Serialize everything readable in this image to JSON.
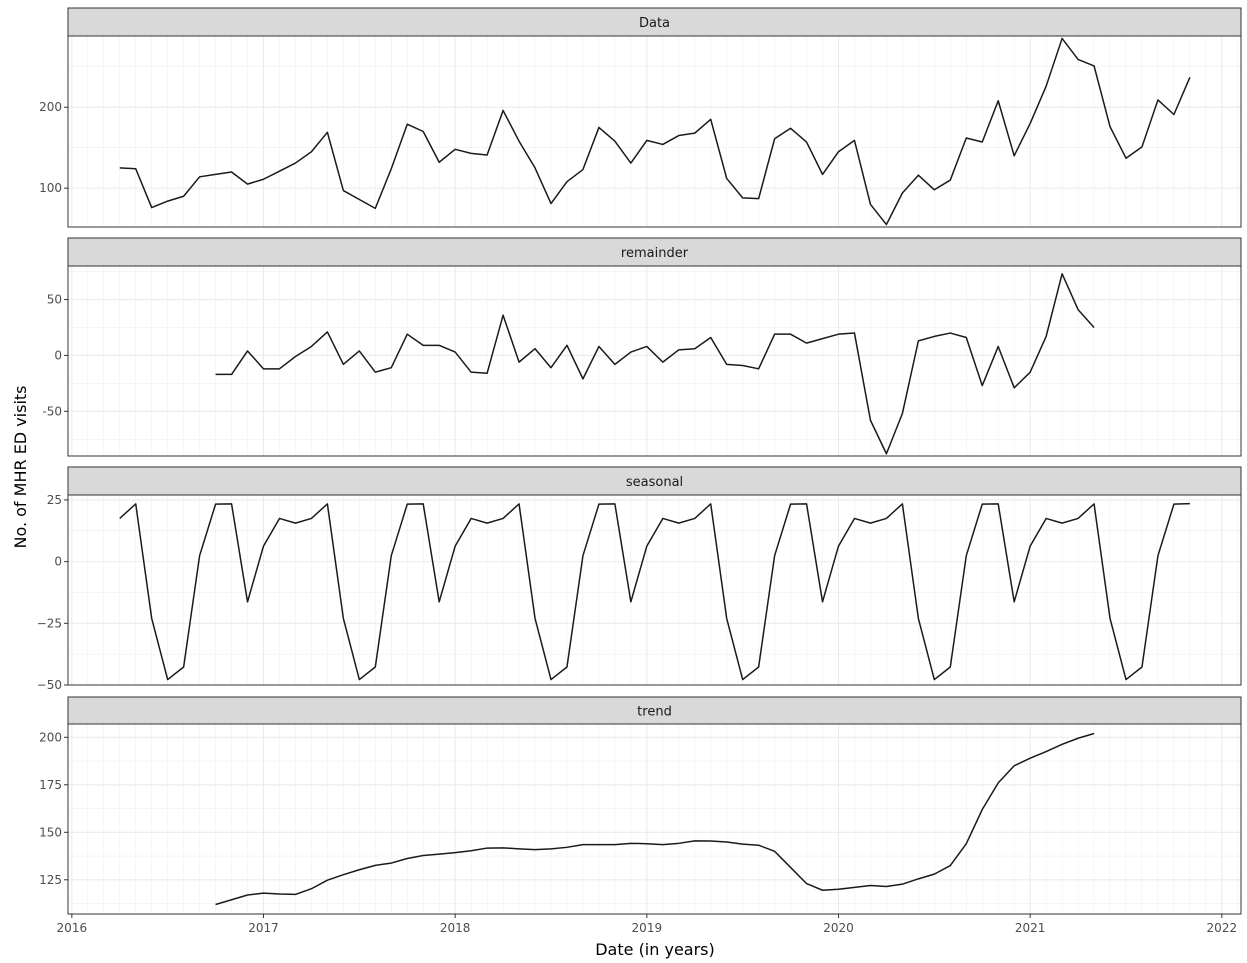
{
  "chart_data": {
    "type": "line",
    "xlabel": "Date (in years)",
    "ylabel": "No. of MHR ED visits",
    "x_ticks": [
      2016,
      2017,
      2018,
      2019,
      2020,
      2021,
      2022
    ],
    "xlim": [
      2015.98,
      2022.1
    ],
    "x_start": 2016.25,
    "x_step": 0.0833333,
    "colors": {
      "line": "#1a1a1a",
      "strip_bg": "#d9d9d9",
      "grid": "#ebebeb",
      "border": "#333333"
    },
    "panels": [
      {
        "title": "Data",
        "ylim": [
          52,
          288
        ],
        "y_ticks": [
          100,
          200
        ],
        "y_tick_labels": [
          "100",
          "200"
        ],
        "start_index": 0,
        "values": [
          125,
          124,
          76,
          84,
          90,
          114,
          117,
          120,
          105,
          111,
          121,
          131,
          145,
          169,
          97,
          86,
          75,
          124,
          179,
          170,
          132,
          148,
          143,
          141,
          196,
          158,
          125,
          81,
          108,
          123,
          175,
          158,
          131,
          159,
          154,
          165,
          168,
          185,
          112,
          88,
          87,
          161,
          174,
          157,
          117,
          145,
          159,
          80,
          55,
          94,
          116,
          98,
          110,
          162,
          157,
          208,
          140,
          180,
          226,
          285,
          259,
          251,
          176,
          137,
          151,
          209,
          191,
          237
        ]
      },
      {
        "title": "remainder",
        "ylim": [
          -90,
          80
        ],
        "y_ticks": [
          -50,
          0,
          50
        ],
        "y_tick_labels": [
          "-50",
          "0",
          "50"
        ],
        "start_index": 6,
        "values": [
          -17,
          -17,
          4,
          -12,
          -12,
          -1,
          8,
          21,
          -8,
          4,
          -15,
          -11,
          19,
          9,
          9,
          3,
          -15,
          -16,
          36,
          -6,
          6,
          -11,
          9,
          -21,
          8,
          -8,
          3,
          8,
          -6,
          5,
          6,
          16,
          -8,
          -9,
          -12,
          19,
          19,
          11,
          15,
          19,
          20,
          -58,
          -88,
          -52,
          13,
          17,
          20,
          16,
          -27,
          8,
          -29,
          -15,
          17,
          73,
          41,
          25
        ]
      },
      {
        "title": "seasonal",
        "ylim": [
          -50,
          27
        ],
        "y_ticks": [
          -50,
          -25,
          0,
          25
        ],
        "y_tick_labels": [
          "−50",
          "−25",
          "0",
          "25"
        ],
        "start_index": 0,
        "values": [
          17.5,
          23.4,
          -23,
          -47.8,
          -42.7,
          2.4,
          23.3,
          23.4,
          -16.3,
          6.3,
          17.5,
          15.6,
          17.5,
          23.4,
          -23,
          -47.8,
          -42.7,
          2.4,
          23.3,
          23.4,
          -16.3,
          6.3,
          17.5,
          15.6,
          17.5,
          23.4,
          -23,
          -47.8,
          -42.7,
          2.4,
          23.3,
          23.4,
          -16.3,
          6.3,
          17.5,
          15.6,
          17.5,
          23.4,
          -23,
          -47.8,
          -42.7,
          2.4,
          23.3,
          23.4,
          -16.3,
          6.3,
          17.5,
          15.6,
          17.5,
          23.4,
          -23,
          -47.8,
          -42.7,
          2.4,
          23.3,
          23.4,
          -16.3,
          6.3,
          17.5,
          15.6,
          17.5,
          23.4,
          -23,
          -47.8,
          -42.7,
          2.4,
          23.3,
          23.5
        ]
      },
      {
        "title": "trend",
        "ylim": [
          107,
          207
        ],
        "y_ticks": [
          125,
          150,
          175,
          200
        ],
        "y_tick_labels": [
          "125",
          "150",
          "175",
          "200"
        ],
        "start_index": 6,
        "values": [
          112,
          114.5,
          117,
          118,
          117.5,
          117.3,
          120.3,
          124.8,
          127.7,
          130.3,
          132.6,
          133.8,
          136.2,
          137.8,
          138.5,
          139.3,
          140.3,
          141.7,
          141.8,
          141.3,
          140.9,
          141.3,
          142.1,
          143.5,
          143.5,
          143.5,
          144.2,
          144,
          143.5,
          144.2,
          145.5,
          145.4,
          144.9,
          143.8,
          143.2,
          140,
          131.5,
          123,
          119.5,
          120,
          121,
          122,
          121.5,
          122.7,
          125.5,
          128,
          132.5,
          144,
          162,
          176,
          185,
          189,
          192.5,
          196.3,
          199.5,
          202
        ]
      }
    ]
  }
}
